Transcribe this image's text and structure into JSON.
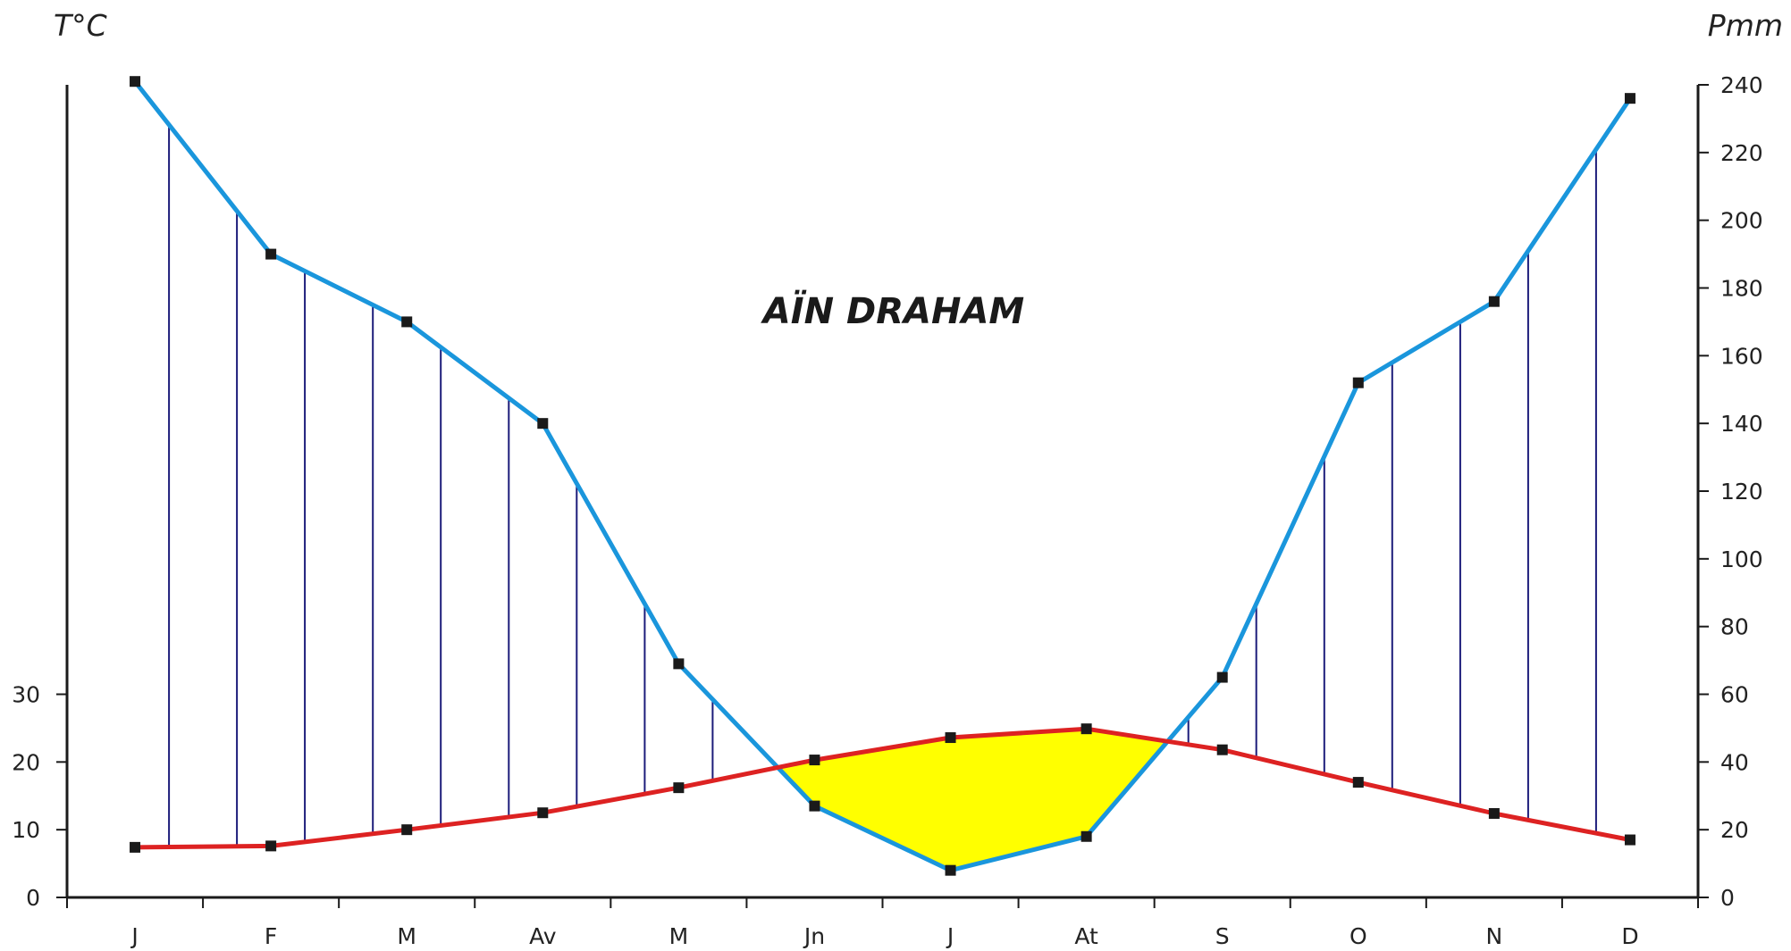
{
  "chart_data": {
    "type": "line",
    "title": "AÏN DRAHAM",
    "left_axis": {
      "label": "T°C",
      "range": [
        0,
        120
      ],
      "ticks": [
        0,
        10,
        20,
        30
      ],
      "tick_labels": [
        "0",
        "10",
        "20",
        "30"
      ]
    },
    "right_axis": {
      "label": "Pmm",
      "range": [
        0,
        240
      ],
      "ticks": [
        0,
        20,
        40,
        60,
        80,
        100,
        120,
        140,
        160,
        180,
        200,
        220,
        240
      ],
      "tick_labels": [
        "0",
        "20",
        "40",
        "60",
        "80",
        "100",
        "120",
        "140",
        "160",
        "180",
        "200",
        "220",
        "240"
      ]
    },
    "categories": [
      "J",
      "F",
      "M",
      "Av",
      "M",
      "Jn",
      "J",
      "At",
      "S",
      "O",
      "N",
      "D"
    ],
    "grid": false,
    "series": [
      {
        "axis": "left",
        "color": "#dd2222",
        "values": [
          7.4,
          7.6,
          10,
          12.5,
          16.2,
          20.3,
          23.6,
          24.9,
          21.8,
          17,
          12.4,
          8.5
        ]
      },
      {
        "axis": "right",
        "color": "#1a96dc",
        "values": [
          241,
          190,
          170,
          140,
          69,
          27,
          8,
          18,
          65,
          152,
          176,
          236
        ]
      }
    ],
    "dry_period_fill": "#ffff00",
    "humid_hatch_color": "#1c1c7a",
    "marker_color": "#1a1a1a"
  }
}
